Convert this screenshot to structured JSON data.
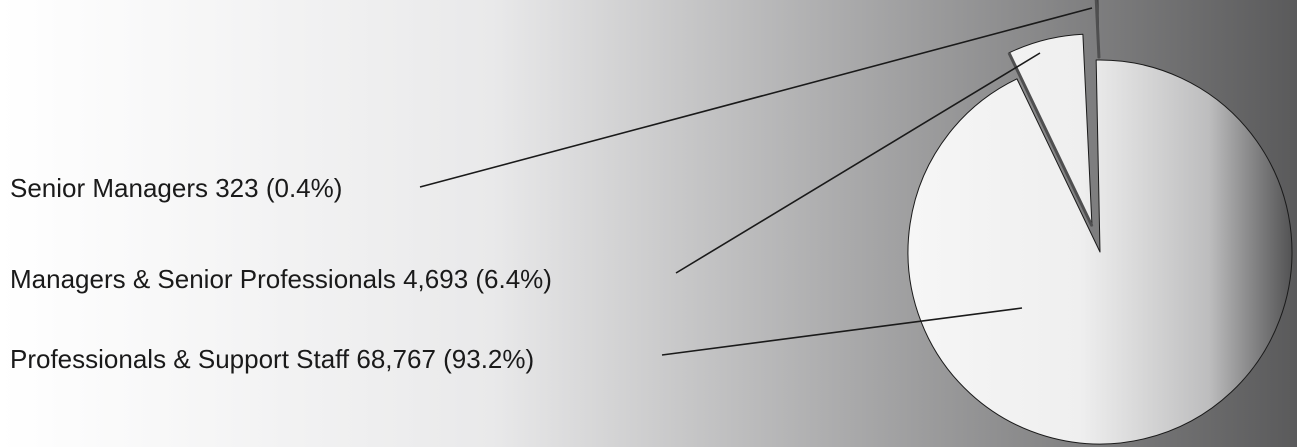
{
  "chart_data": {
    "type": "pie",
    "title": "",
    "series": [
      {
        "name": "",
        "slices": [
          {
            "label": "Senior Managers",
            "value": 323,
            "percent": 0.4,
            "display_label": "Senior Managers 323 (0.4%)"
          },
          {
            "label": "Managers & Senior Professionals",
            "value": 4693,
            "percent": 6.4,
            "display_label": "Managers & Senior Professionals 4,693 (6.4%)"
          },
          {
            "label": "Professionals & Support Staff",
            "value": 68767,
            "percent": 93.2,
            "display_label": "Professionals & Support Staff 68,767 (93.2%)"
          }
        ]
      }
    ],
    "legend": "none",
    "labels_placement": "left, with leader lines",
    "exploded_slices": [
      "Senior Managers",
      "Managers & Senior Professionals"
    ],
    "colors": {
      "background_left": "#ffffff",
      "background_right": "#5a5a5b",
      "slice_light": "#f6f6f6",
      "slice_dark": "#4f4f50",
      "outline": "#1a1a1a"
    }
  }
}
